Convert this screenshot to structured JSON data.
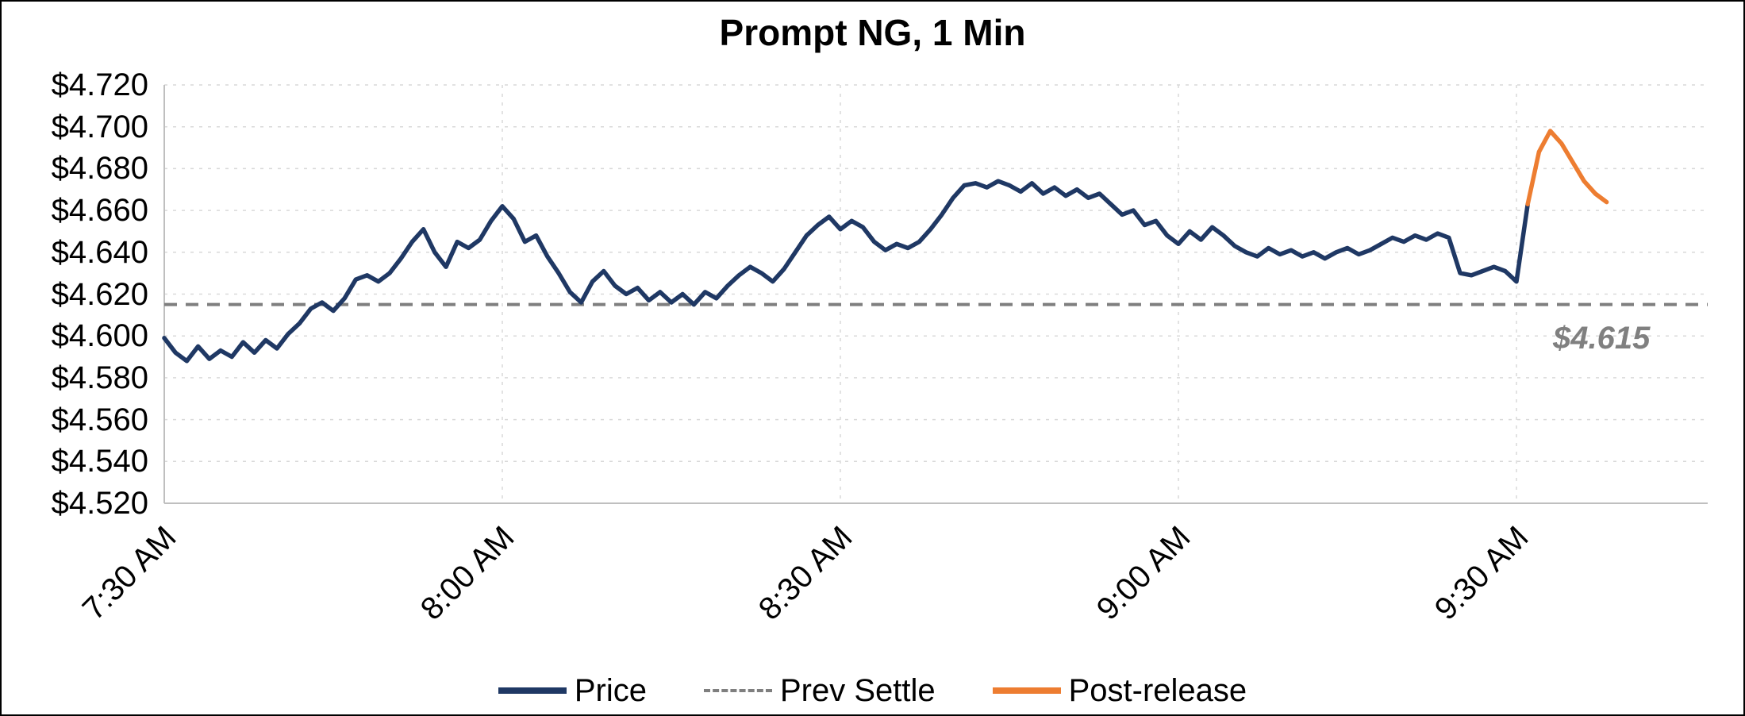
{
  "chart_data": {
    "type": "line",
    "title": "Prompt NG, 1 Min",
    "x_axis": {
      "start_time": "7:30 AM",
      "interval_minutes": 1,
      "tick_labels": [
        "7:30 AM",
        "8:00 AM",
        "8:30 AM",
        "9:00 AM",
        "9:30 AM"
      ],
      "tick_minutes": [
        0,
        30,
        60,
        90,
        120
      ],
      "axis_max_minutes": 137
    },
    "y_axis": {
      "min": 4.52,
      "max": 4.72,
      "step": 0.02,
      "tick_labels": [
        "$4.720",
        "$4.700",
        "$4.680",
        "$4.660",
        "$4.640",
        "$4.620",
        "$4.600",
        "$4.580",
        "$4.560",
        "$4.540",
        "$4.520"
      ]
    },
    "grid": true,
    "legend_position": "bottom",
    "prev_settle": {
      "value": 4.615,
      "label": "$4.615"
    },
    "series": [
      {
        "name": "Price",
        "color": "#1F3864",
        "start_minute": 0,
        "values": [
          4.599,
          4.592,
          4.588,
          4.595,
          4.589,
          4.593,
          4.59,
          4.597,
          4.592,
          4.598,
          4.594,
          4.601,
          4.606,
          4.613,
          4.616,
          4.612,
          4.618,
          4.627,
          4.629,
          4.626,
          4.63,
          4.637,
          4.645,
          4.651,
          4.64,
          4.633,
          4.645,
          4.642,
          4.646,
          4.655,
          4.662,
          4.656,
          4.645,
          4.648,
          4.638,
          4.63,
          4.621,
          4.616,
          4.626,
          4.631,
          4.624,
          4.62,
          4.623,
          4.617,
          4.621,
          4.616,
          4.62,
          4.615,
          4.621,
          4.618,
          4.624,
          4.629,
          4.633,
          4.63,
          4.626,
          4.632,
          4.64,
          4.648,
          4.653,
          4.657,
          4.651,
          4.655,
          4.652,
          4.645,
          4.641,
          4.644,
          4.642,
          4.645,
          4.651,
          4.658,
          4.666,
          4.672,
          4.673,
          4.671,
          4.674,
          4.672,
          4.669,
          4.673,
          4.668,
          4.671,
          4.667,
          4.67,
          4.666,
          4.668,
          4.663,
          4.658,
          4.66,
          4.653,
          4.655,
          4.648,
          4.644,
          4.65,
          4.646,
          4.652,
          4.648,
          4.643,
          4.64,
          4.638,
          4.642,
          4.639,
          4.641,
          4.638,
          4.64,
          4.637,
          4.64,
          4.642,
          4.639,
          4.641,
          4.644,
          4.647,
          4.645,
          4.648,
          4.646,
          4.649,
          4.647,
          4.63,
          4.629,
          4.631,
          4.633,
          4.631,
          4.626,
          4.663
        ]
      },
      {
        "name": "Post-release",
        "color": "#ED7D31",
        "start_minute": 121,
        "values": [
          4.663,
          4.688,
          4.698,
          4.692,
          4.683,
          4.674,
          4.668,
          4.664
        ]
      }
    ],
    "legend": [
      {
        "label": "Price",
        "line_style": "solid",
        "color": "#1F3864",
        "thickness": 8
      },
      {
        "label": "Prev Settle",
        "line_style": "dashed",
        "color": "#7F7F7F",
        "thickness": 4
      },
      {
        "label": "Post-release",
        "line_style": "solid",
        "color": "#ED7D31",
        "thickness": 8
      }
    ]
  },
  "colors": {
    "price": "#1F3864",
    "post_release": "#ED7D31",
    "prev_settle": "#7F7F7F",
    "gridline": "#D9D9D9",
    "axis": "#BFBFBF"
  }
}
